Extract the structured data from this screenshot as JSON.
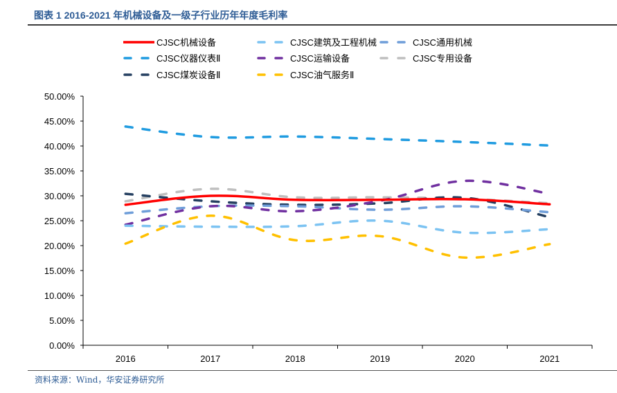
{
  "title": "图表 1 2016-2021 年机械设备及一级子行业历年年度毛利率",
  "source": "资料来源：Wind，华安证券研究所",
  "chart_data": {
    "type": "line",
    "title": "图表 1 2016-2021 年机械设备及一级子行业历年年度毛利率",
    "xlabel": "",
    "ylabel": "",
    "x": [
      "2016",
      "2017",
      "2018",
      "2019",
      "2020",
      "2021"
    ],
    "ylim": [
      0,
      50
    ],
    "yticks": [
      "0.00%",
      "5.00%",
      "10.00%",
      "15.00%",
      "20.00%",
      "25.00%",
      "30.00%",
      "35.00%",
      "40.00%",
      "45.00%",
      "50.00%"
    ],
    "grid": false,
    "legend_position": "top",
    "series": [
      {
        "name": "CJSC机械设备",
        "color": "#ff0000",
        "style": "solid",
        "values": [
          28.2,
          30.0,
          29.2,
          29.2,
          29.3,
          28.3
        ]
      },
      {
        "name": "CJSC建筑及工程机械",
        "color": "#7cc3f2",
        "style": "dashed",
        "values": [
          24.0,
          23.8,
          23.9,
          25.0,
          22.6,
          23.3
        ]
      },
      {
        "name": "CJSC通用机械",
        "color": "#6f9ed9",
        "style": "dashed",
        "values": [
          26.5,
          27.9,
          27.9,
          27.2,
          27.9,
          26.7
        ]
      },
      {
        "name": "CJSC仪器仪表Ⅱ",
        "color": "#1f9be0",
        "style": "dashed",
        "values": [
          43.9,
          41.8,
          41.9,
          41.4,
          40.8,
          40.1
        ]
      },
      {
        "name": "CJSC运输设备",
        "color": "#7030a0",
        "style": "dashed",
        "values": [
          24.2,
          27.9,
          26.9,
          29.0,
          33.0,
          30.4
        ]
      },
      {
        "name": "CJSC专用设备",
        "color": "#bfbfbf",
        "style": "dashed",
        "values": [
          28.9,
          31.4,
          29.7,
          29.7,
          29.4,
          28.5
        ]
      },
      {
        "name": "CJSC煤炭设备Ⅱ",
        "color": "#243f60",
        "style": "dashed",
        "values": [
          30.4,
          28.9,
          28.2,
          28.5,
          29.6,
          25.7
        ]
      },
      {
        "name": "CJSC油气服务Ⅱ",
        "color": "#ffc000",
        "style": "dashed",
        "values": [
          20.4,
          26.0,
          21.1,
          21.9,
          17.6,
          20.3
        ]
      }
    ]
  }
}
